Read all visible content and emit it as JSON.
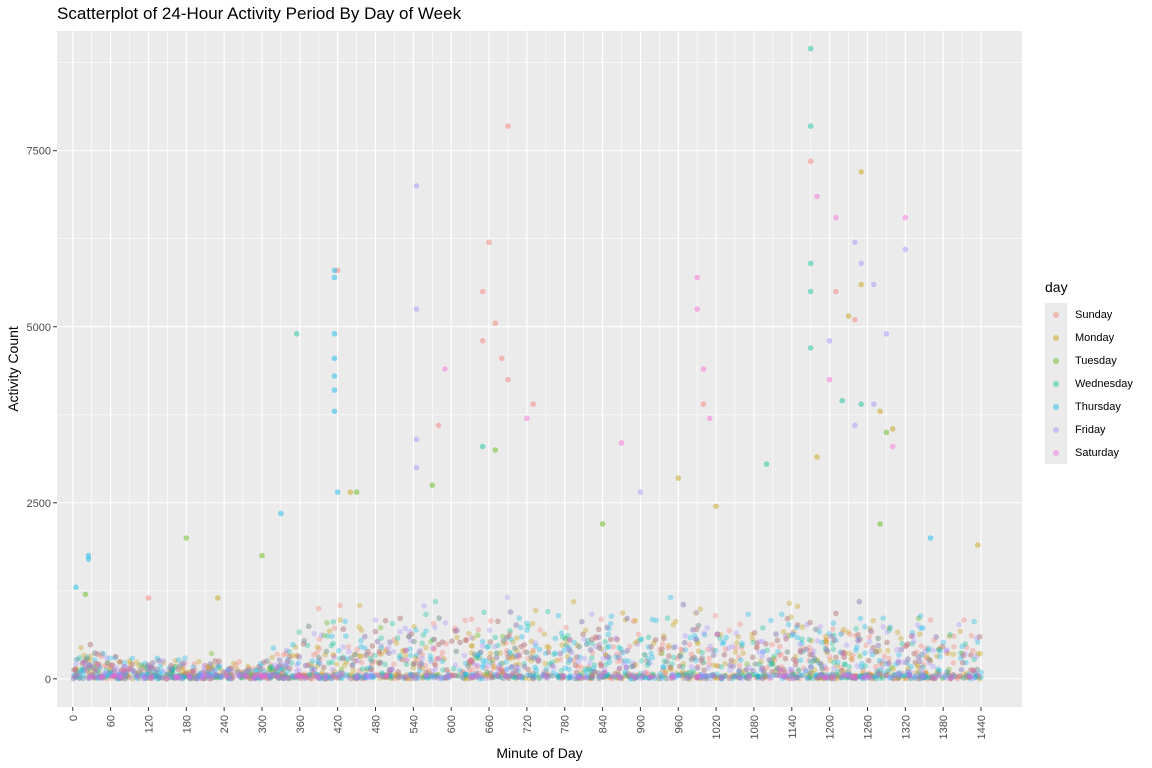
{
  "chart_data": {
    "type": "scatter",
    "title": "Scatterplot of 24-Hour Activity Period By Day of Week",
    "xlabel": "Minute of Day",
    "ylabel": "Activity Count",
    "xlim": [
      -25,
      1505
    ],
    "ylim": [
      -400,
      9200
    ],
    "x_ticks": [
      "0",
      "60",
      "120",
      "180",
      "240",
      "300",
      "360",
      "420",
      "480",
      "540",
      "600",
      "660",
      "720",
      "780",
      "840",
      "900",
      "960",
      "1020",
      "1080",
      "1140",
      "1200",
      "1260",
      "1320",
      "1380",
      "1440"
    ],
    "y_ticks": [
      "0",
      "2500",
      "5000",
      "7500"
    ],
    "grid": true,
    "legend_position": "right",
    "legend_title": "day",
    "series": [
      {
        "name": "Sunday",
        "color": "#F8766D",
        "points": [
          [
            420,
            5800
          ],
          [
            650,
            5500
          ],
          [
            660,
            6200
          ],
          [
            670,
            5050
          ],
          [
            650,
            4800
          ],
          [
            680,
            4550
          ],
          [
            690,
            4250
          ],
          [
            690,
            7850
          ],
          [
            730,
            3900
          ],
          [
            1170,
            7350
          ],
          [
            1210,
            5500
          ],
          [
            1000,
            3900
          ],
          [
            1240,
            5100
          ],
          [
            580,
            3600
          ],
          [
            120,
            1150
          ]
        ]
      },
      {
        "name": "Monday",
        "color": "#C49A00",
        "points": [
          [
            1250,
            7200
          ],
          [
            1250,
            5600
          ],
          [
            1230,
            5150
          ],
          [
            1280,
            3800
          ],
          [
            1300,
            3550
          ],
          [
            1180,
            3150
          ],
          [
            440,
            2650
          ],
          [
            960,
            2850
          ],
          [
            1435,
            1900
          ],
          [
            230,
            1150
          ],
          [
            1020,
            2450
          ]
        ]
      },
      {
        "name": "Tuesday",
        "color": "#53B400",
        "points": [
          [
            180,
            2000
          ],
          [
            570,
            2750
          ],
          [
            670,
            3250
          ],
          [
            1290,
            3500
          ],
          [
            1280,
            2200
          ],
          [
            450,
            2650
          ],
          [
            20,
            1200
          ],
          [
            300,
            1750
          ],
          [
            840,
            2200
          ]
        ]
      },
      {
        "name": "Wednesday",
        "color": "#00C094",
        "points": [
          [
            1170,
            8950
          ],
          [
            1170,
            7850
          ],
          [
            1170,
            5900
          ],
          [
            1170,
            5500
          ],
          [
            1170,
            4700
          ],
          [
            355,
            4900
          ],
          [
            1100,
            3050
          ],
          [
            1220,
            3950
          ],
          [
            1250,
            3900
          ],
          [
            650,
            3300
          ]
        ]
      },
      {
        "name": "Thursday",
        "color": "#00B6EB",
        "points": [
          [
            415,
            5800
          ],
          [
            415,
            5700
          ],
          [
            415,
            4900
          ],
          [
            415,
            4550
          ],
          [
            415,
            4300
          ],
          [
            415,
            4100
          ],
          [
            415,
            3800
          ],
          [
            25,
            1700
          ],
          [
            25,
            1750
          ],
          [
            5,
            1300
          ],
          [
            420,
            2650
          ],
          [
            330,
            2350
          ],
          [
            1360,
            2000
          ]
        ]
      },
      {
        "name": "Friday",
        "color": "#A58AFF",
        "points": [
          [
            545,
            7000
          ],
          [
            545,
            5250
          ],
          [
            545,
            3400
          ],
          [
            545,
            3000
          ],
          [
            1240,
            6200
          ],
          [
            1250,
            5900
          ],
          [
            1320,
            6100
          ],
          [
            1270,
            5600
          ],
          [
            1200,
            4800
          ],
          [
            1290,
            4900
          ],
          [
            1270,
            3900
          ],
          [
            1240,
            3600
          ],
          [
            900,
            2650
          ]
        ]
      },
      {
        "name": "Saturday",
        "color": "#FB61D7",
        "points": [
          [
            1180,
            6850
          ],
          [
            1210,
            6550
          ],
          [
            1320,
            6550
          ],
          [
            990,
            5700
          ],
          [
            990,
            5250
          ],
          [
            1000,
            4400
          ],
          [
            1200,
            4250
          ],
          [
            590,
            4400
          ],
          [
            1300,
            3300
          ],
          [
            870,
            3350
          ],
          [
            720,
            3700
          ],
          [
            1010,
            3700
          ]
        ]
      }
    ]
  }
}
